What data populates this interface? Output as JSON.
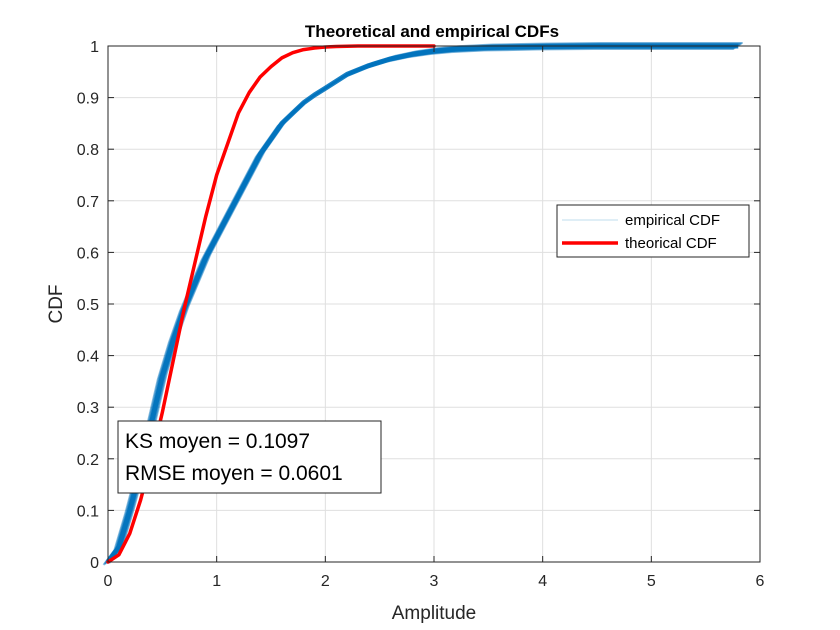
{
  "chart_data": {
    "type": "line",
    "title": "Theoretical and empirical CDFs",
    "xlabel": "Amplitude",
    "ylabel": "CDF",
    "xlim": [
      0,
      6
    ],
    "ylim": [
      0,
      1
    ],
    "xticks": [
      0,
      1,
      2,
      3,
      4,
      5,
      6
    ],
    "yticks": [
      0,
      0.1,
      0.2,
      0.3,
      0.4,
      0.5,
      0.6,
      0.7,
      0.8,
      0.9,
      1
    ],
    "xtick_labels": [
      "0",
      "1",
      "2",
      "3",
      "4",
      "5",
      "6"
    ],
    "ytick_labels": [
      "0",
      "0.1",
      "0.2",
      "0.3",
      "0.4",
      "0.5",
      "0.6",
      "0.7",
      "0.8",
      "0.9",
      "1"
    ],
    "grid": true,
    "legend_position": "right",
    "series": [
      {
        "name": "empirical CDF",
        "color": "#0072BD",
        "style": "band of many thin overlapping curves",
        "x": [
          0,
          0.1,
          0.2,
          0.3,
          0.4,
          0.5,
          0.6,
          0.7,
          0.8,
          0.9,
          1.0,
          1.1,
          1.2,
          1.3,
          1.4,
          1.5,
          1.6,
          1.7,
          1.8,
          1.9,
          2.0,
          2.2,
          2.4,
          2.6,
          2.8,
          3.0,
          3.2,
          3.5,
          4.0,
          4.5,
          5.0,
          5.5,
          5.8
        ],
        "y": [
          0,
          0.029,
          0.1,
          0.18,
          0.27,
          0.36,
          0.43,
          0.49,
          0.54,
          0.59,
          0.63,
          0.67,
          0.71,
          0.75,
          0.79,
          0.82,
          0.85,
          0.87,
          0.89,
          0.905,
          0.918,
          0.945,
          0.962,
          0.975,
          0.984,
          0.99,
          0.994,
          0.997,
          0.999,
          1.0,
          1.0,
          1.0,
          1.0
        ]
      },
      {
        "name": "theorical CDF",
        "color": "#FF0000",
        "style": "thick line",
        "x": [
          0,
          0.1,
          0.2,
          0.3,
          0.4,
          0.5,
          0.6,
          0.7,
          0.8,
          0.9,
          1.0,
          1.1,
          1.2,
          1.3,
          1.4,
          1.5,
          1.6,
          1.7,
          1.8,
          1.9,
          2.0,
          2.1,
          2.2,
          2.3,
          2.4,
          2.5,
          2.6,
          2.7,
          2.8,
          2.9,
          3.0
        ],
        "y": [
          0,
          0.014,
          0.055,
          0.12,
          0.2,
          0.29,
          0.39,
          0.49,
          0.58,
          0.67,
          0.75,
          0.81,
          0.87,
          0.91,
          0.94,
          0.96,
          0.977,
          0.987,
          0.993,
          0.996,
          0.998,
          0.999,
          0.9995,
          1.0,
          1.0,
          1.0,
          1.0,
          1.0,
          1.0,
          1.0,
          1.0
        ]
      }
    ],
    "annotation": {
      "lines": [
        "KS moyen = 0.1097",
        "RMSE moyen = 0.0601"
      ]
    }
  }
}
